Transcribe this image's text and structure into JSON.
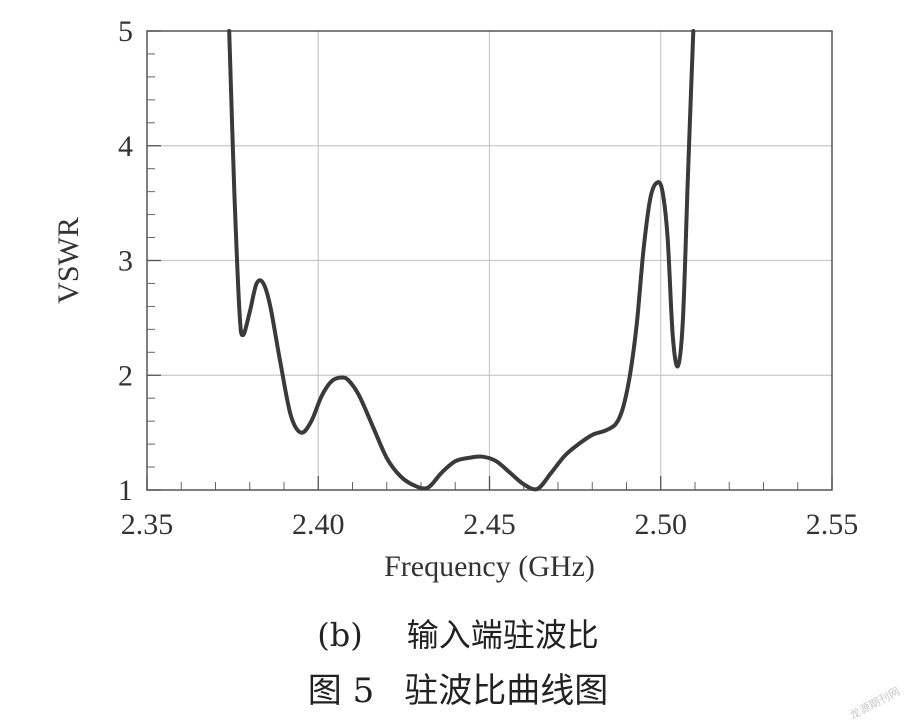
{
  "chart_data": {
    "type": "line",
    "title": "",
    "xlabel": "Frequency (GHz)",
    "ylabel": "VSWR",
    "xlim": [
      2.35,
      2.55
    ],
    "ylim": [
      1,
      5
    ],
    "xticks": [
      "2.35",
      "2.40",
      "2.45",
      "2.50",
      "2.55"
    ],
    "yticks": [
      "1",
      "2",
      "3",
      "4",
      "5"
    ],
    "grid": true,
    "series": [
      {
        "color": "#3a3a3a",
        "x": [
          2.374,
          2.3755,
          2.377,
          2.378,
          2.38,
          2.382,
          2.384,
          2.386,
          2.389,
          2.392,
          2.395,
          2.398,
          2.401,
          2.404,
          2.407,
          2.409,
          2.412,
          2.416,
          2.42,
          2.424,
          2.428,
          2.432,
          2.436,
          2.44,
          2.444,
          2.448,
          2.452,
          2.456,
          2.46,
          2.464,
          2.468,
          2.472,
          2.476,
          2.48,
          2.484,
          2.487,
          2.489,
          2.491,
          2.493,
          2.495,
          2.497,
          2.499,
          2.5005,
          2.502,
          2.5035,
          2.505,
          2.5065,
          2.508,
          2.5095
        ],
        "y": [
          5.0,
          3.6,
          2.55,
          2.35,
          2.55,
          2.8,
          2.8,
          2.6,
          2.1,
          1.65,
          1.5,
          1.6,
          1.82,
          1.95,
          1.98,
          1.95,
          1.82,
          1.55,
          1.28,
          1.12,
          1.04,
          1.02,
          1.15,
          1.25,
          1.28,
          1.29,
          1.25,
          1.15,
          1.05,
          1.01,
          1.15,
          1.3,
          1.4,
          1.48,
          1.52,
          1.58,
          1.72,
          2.0,
          2.45,
          3.1,
          3.55,
          3.68,
          3.6,
          3.2,
          2.35,
          2.08,
          2.5,
          3.8,
          5.0
        ]
      }
    ]
  },
  "captions": {
    "sub_label": "(b)",
    "sub_text": "输入端驻波比",
    "fig_label": "图 5",
    "fig_text": "驻波比曲线图"
  },
  "watermark": "龙源期刊网"
}
